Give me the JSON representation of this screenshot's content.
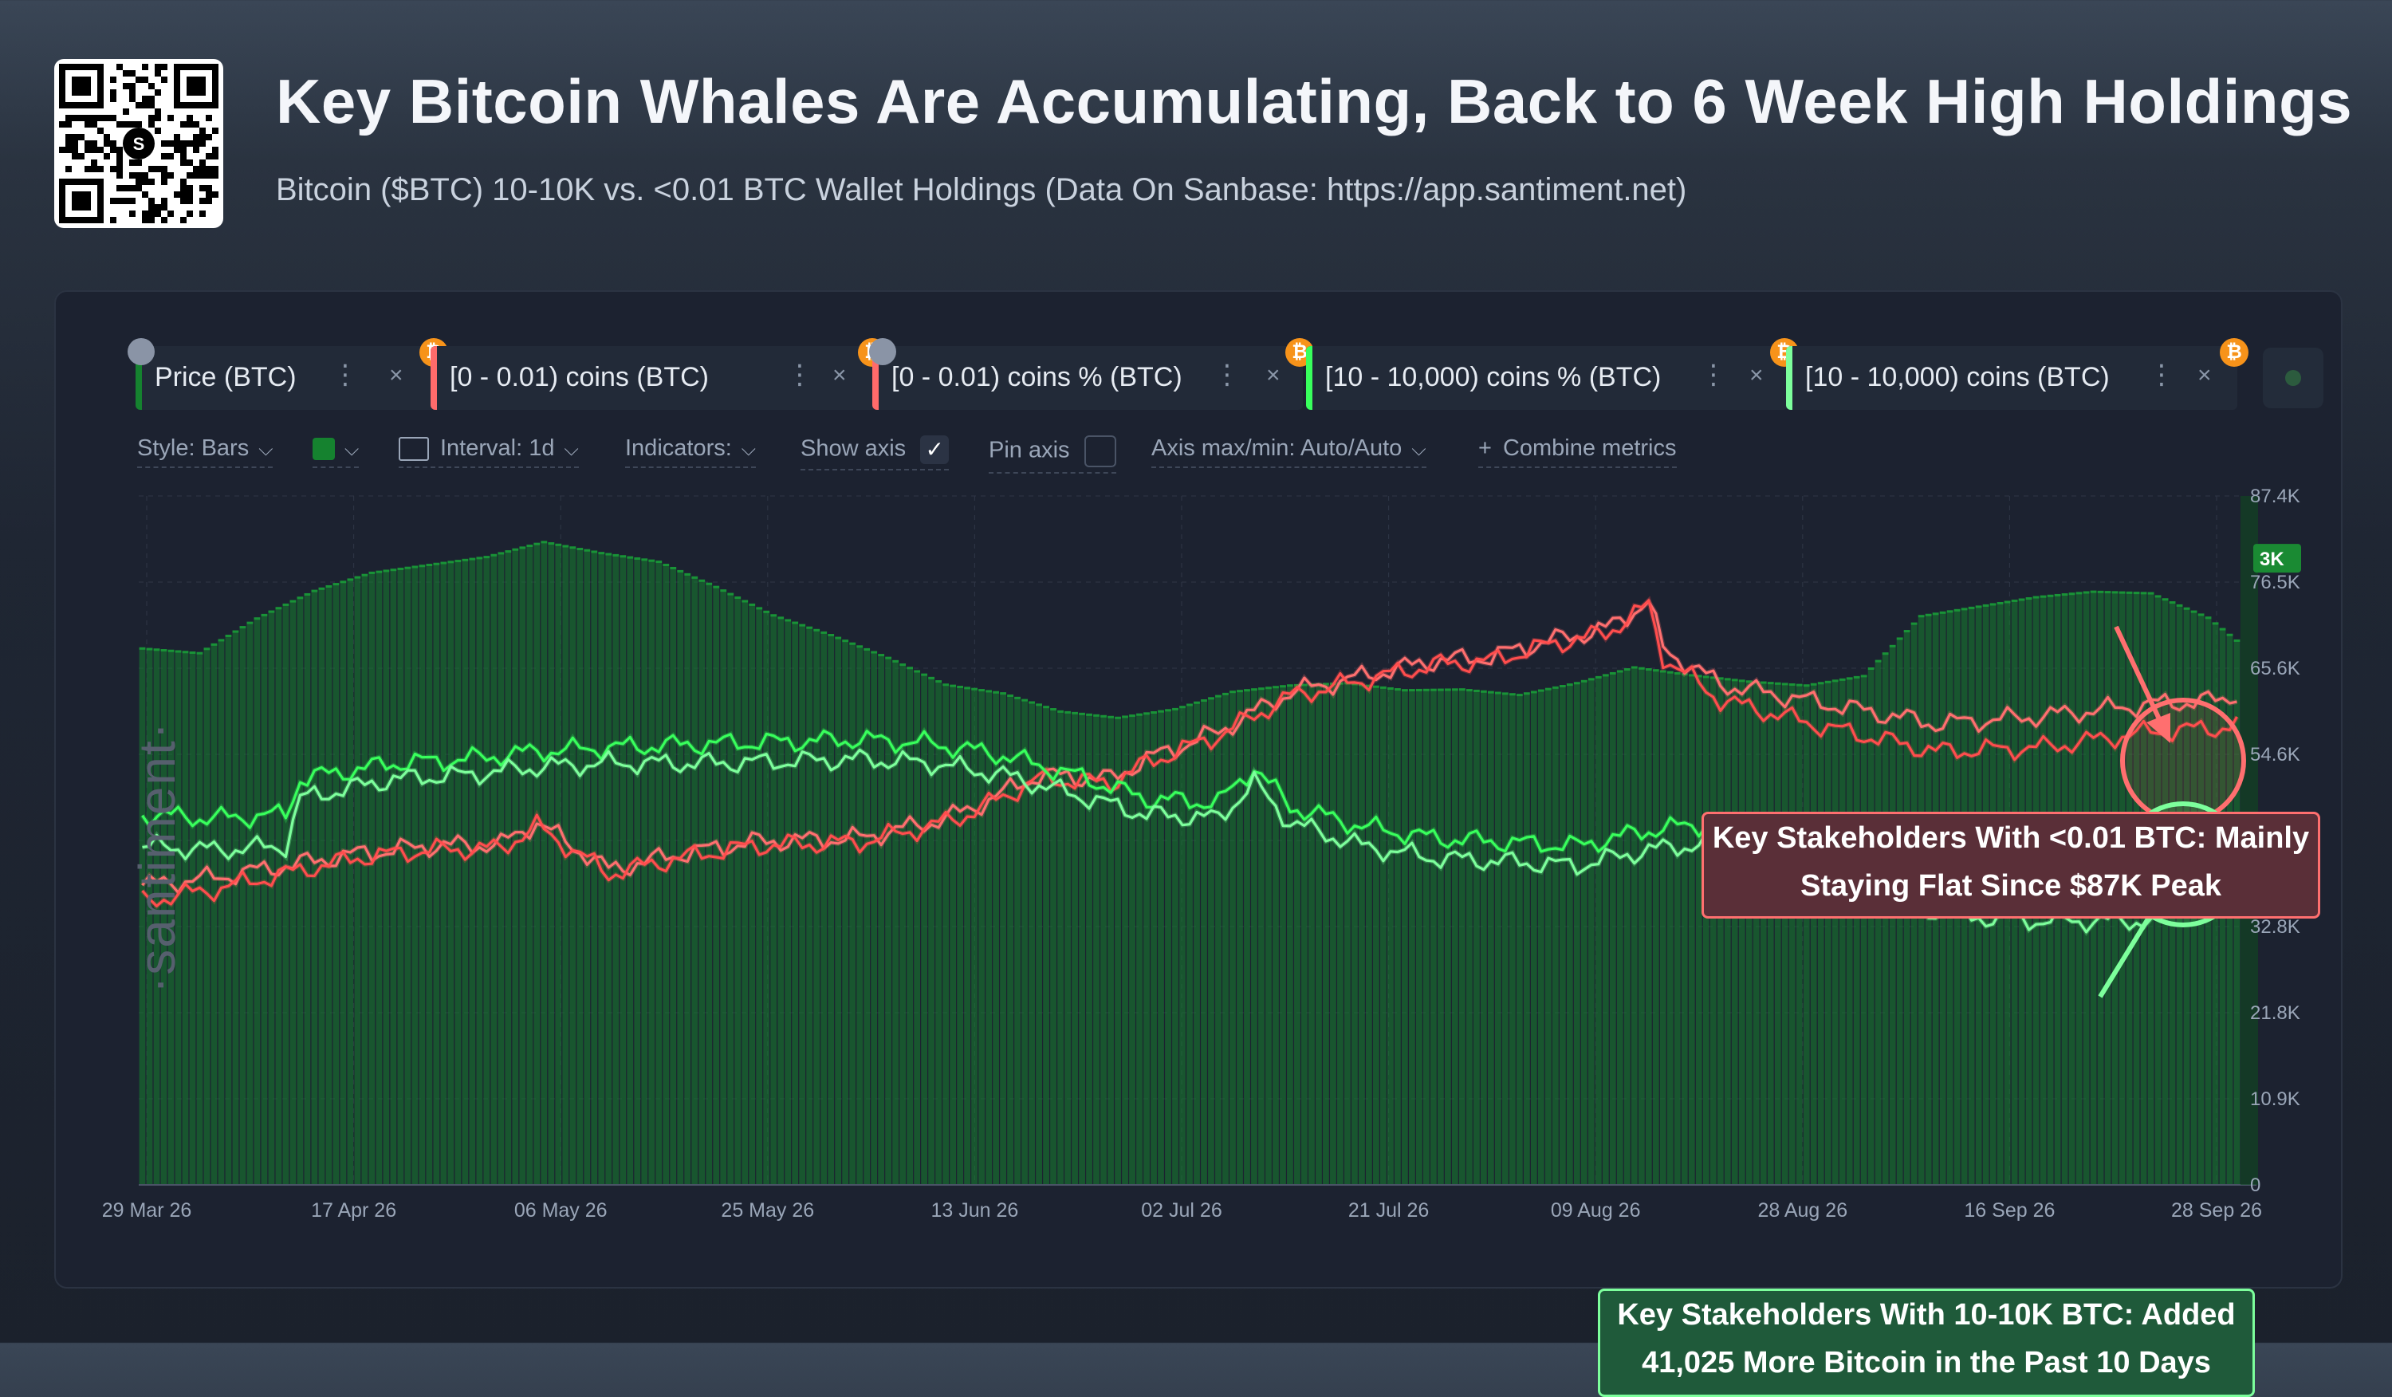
{
  "header": {
    "title": "Key Bitcoin Whales Are Accumulating, Back to 6 Week High Holdings",
    "subtitle": "Bitcoin ($BTC) 10-10K vs. <0.01 BTC Wallet Holdings (Data On Sanbase: https://app.santiment.net)",
    "qr_logo_letter": "S"
  },
  "metrics": [
    {
      "label": "Price (BTC)",
      "color": "#15822f",
      "locked": true
    },
    {
      "label": "[0 - 0.01) coins (BTC)",
      "color": "#ff6b6b",
      "locked": false
    },
    {
      "label": "[0 - 0.01) coins % (BTC)",
      "color": "#ff6b6b",
      "locked": true
    },
    {
      "label": "[10 - 10,000) coins % (BTC)",
      "color": "#38ff5c",
      "locked": false
    },
    {
      "label": "[10 - 10,000) coins (BTC)",
      "color": "#7dff9c",
      "locked": false
    }
  ],
  "controls": {
    "style": "Style: Bars",
    "interval": "Interval: 1d",
    "indicators": "Indicators:",
    "show_axis": "Show axis",
    "pin_axis": "Pin axis",
    "axis_minmax": "Axis max/min: Auto/Auto",
    "combine": "Combine metrics",
    "chevron": "⌵",
    "check": "✓",
    "plus": "+",
    "menu_dots": "⋮",
    "close": "×",
    "bitcoin_glyph": "₿"
  },
  "watermark": "·santiment·",
  "chart_data": {
    "type": "bar",
    "x_tick_labels": [
      "29 Mar 26",
      "17 Apr 26",
      "06 May 26",
      "25 May 26",
      "13 Jun 26",
      "02 Jul 26",
      "21 Jul 26",
      "09 Aug 26",
      "28 Aug 26",
      "16 Sep 26",
      "28 Sep 26"
    ],
    "y_tick_labels": [
      "87.4K",
      "76.5K",
      "65.6K",
      "54.6K",
      "43.7K",
      "32.8K",
      "21.8K",
      "10.9K",
      "0"
    ],
    "ylim": [
      0,
      87400
    ],
    "current_price_tag": "3K",
    "grid": true,
    "price_bars": {
      "name": "Price (BTC)",
      "color": "#15822f",
      "knots": [
        [
          0,
          68200
        ],
        [
          8,
          67600
        ],
        [
          16,
          72000
        ],
        [
          24,
          75500
        ],
        [
          32,
          77800
        ],
        [
          40,
          78800
        ],
        [
          48,
          79800
        ],
        [
          56,
          81700
        ],
        [
          64,
          80300
        ],
        [
          72,
          79200
        ],
        [
          80,
          76000
        ],
        [
          88,
          72400
        ],
        [
          96,
          69900
        ],
        [
          104,
          67000
        ],
        [
          112,
          63600
        ],
        [
          120,
          62500
        ],
        [
          128,
          60200
        ],
        [
          136,
          59400
        ],
        [
          144,
          60500
        ],
        [
          152,
          62700
        ],
        [
          160,
          63500
        ],
        [
          168,
          63800
        ],
        [
          176,
          62900
        ],
        [
          184,
          63000
        ],
        [
          192,
          62300
        ],
        [
          200,
          63800
        ],
        [
          208,
          65800
        ],
        [
          216,
          64800
        ],
        [
          224,
          64000
        ],
        [
          232,
          63500
        ],
        [
          240,
          64700
        ],
        [
          248,
          72300
        ],
        [
          256,
          73500
        ],
        [
          264,
          74700
        ],
        [
          272,
          75400
        ],
        [
          280,
          75200
        ],
        [
          288,
          72100
        ],
        [
          292,
          69200
        ]
      ]
    },
    "series": [
      {
        "name": "[0 - 0.01) coins (BTC)",
        "color": "#ff6f6f",
        "knots": [
          [
            0,
            38000
          ],
          [
            10,
            39000
          ],
          [
            20,
            40500
          ],
          [
            30,
            42000
          ],
          [
            40,
            43000
          ],
          [
            50,
            43200
          ],
          [
            55,
            46000
          ],
          [
            60,
            43000
          ],
          [
            65,
            40000
          ],
          [
            75,
            42000
          ],
          [
            85,
            43500
          ],
          [
            100,
            44000
          ],
          [
            110,
            46000
          ],
          [
            115,
            47500
          ],
          [
            125,
            52000
          ],
          [
            135,
            51500
          ],
          [
            140,
            54000
          ],
          [
            150,
            57500
          ],
          [
            160,
            62500
          ],
          [
            170,
            64500
          ],
          [
            180,
            66500
          ],
          [
            188,
            67000
          ],
          [
            196,
            69000
          ],
          [
            204,
            70500
          ],
          [
            210,
            74000
          ],
          [
            212,
            68000
          ],
          [
            220,
            63500
          ],
          [
            235,
            61000
          ],
          [
            250,
            58500
          ],
          [
            265,
            59500
          ],
          [
            280,
            61000
          ],
          [
            290,
            61500
          ],
          [
            292,
            62500
          ]
        ]
      },
      {
        "name": "[0 - 0.01) coins % (BTC)",
        "color": "#ff4d4d",
        "knots": [
          [
            0,
            36000
          ],
          [
            10,
            37500
          ],
          [
            20,
            39500
          ],
          [
            30,
            41500
          ],
          [
            40,
            42500
          ],
          [
            50,
            42700
          ],
          [
            55,
            45500
          ],
          [
            60,
            42500
          ],
          [
            65,
            39500
          ],
          [
            75,
            41500
          ],
          [
            85,
            43000
          ],
          [
            100,
            43500
          ],
          [
            110,
            45500
          ],
          [
            115,
            47000
          ],
          [
            125,
            51500
          ],
          [
            135,
            51000
          ],
          [
            140,
            53500
          ],
          [
            150,
            57000
          ],
          [
            160,
            62000
          ],
          [
            170,
            64000
          ],
          [
            180,
            66000
          ],
          [
            188,
            66500
          ],
          [
            196,
            68500
          ],
          [
            204,
            70000
          ],
          [
            210,
            73500
          ],
          [
            212,
            67000
          ],
          [
            220,
            61500
          ],
          [
            235,
            58000
          ],
          [
            250,
            55000
          ],
          [
            265,
            55500
          ],
          [
            280,
            57500
          ],
          [
            290,
            58000
          ],
          [
            292,
            58500
          ]
        ]
      },
      {
        "name": "[10 - 10,000) coins % (BTC)",
        "color": "#38ff5c",
        "knots": [
          [
            0,
            47000
          ],
          [
            10,
            46500
          ],
          [
            20,
            47000
          ],
          [
            22,
            51500
          ],
          [
            35,
            53500
          ],
          [
            45,
            54000
          ],
          [
            55,
            55000
          ],
          [
            65,
            55500
          ],
          [
            80,
            56000
          ],
          [
            100,
            56500
          ],
          [
            110,
            56000
          ],
          [
            120,
            54500
          ],
          [
            130,
            52000
          ],
          [
            140,
            49000
          ],
          [
            150,
            48500
          ],
          [
            155,
            53000
          ],
          [
            160,
            48000
          ],
          [
            170,
            45500
          ],
          [
            180,
            44000
          ],
          [
            190,
            43500
          ],
          [
            200,
            43000
          ],
          [
            210,
            45000
          ],
          [
            220,
            46000
          ],
          [
            225,
            43000
          ],
          [
            235,
            40000
          ],
          [
            245,
            38500
          ],
          [
            255,
            37000
          ],
          [
            265,
            37000
          ],
          [
            280,
            37000
          ],
          [
            285,
            40000
          ],
          [
            292,
            46000
          ]
        ]
      },
      {
        "name": "[10 - 10,000) coins (BTC)",
        "color": "#7dff9c",
        "knots": [
          [
            0,
            43000
          ],
          [
            10,
            42500
          ],
          [
            20,
            43000
          ],
          [
            22,
            49000
          ],
          [
            35,
            51500
          ],
          [
            45,
            52000
          ],
          [
            55,
            53000
          ],
          [
            65,
            53500
          ],
          [
            80,
            53500
          ],
          [
            100,
            54000
          ],
          [
            110,
            53500
          ],
          [
            120,
            52000
          ],
          [
            130,
            49500
          ],
          [
            140,
            47000
          ],
          [
            150,
            46500
          ],
          [
            155,
            51000
          ],
          [
            160,
            46000
          ],
          [
            170,
            43000
          ],
          [
            180,
            41500
          ],
          [
            190,
            41000
          ],
          [
            200,
            40500
          ],
          [
            210,
            42500
          ],
          [
            220,
            43500
          ],
          [
            225,
            40500
          ],
          [
            235,
            37000
          ],
          [
            245,
            35500
          ],
          [
            255,
            34000
          ],
          [
            265,
            33500
          ],
          [
            280,
            33500
          ],
          [
            285,
            37000
          ],
          [
            292,
            43000
          ]
        ]
      }
    ]
  },
  "annotations": {
    "red": {
      "line1": "Key Stakeholders With <0.01 BTC: Mainly",
      "line2": "Staying Flat Since $87K Peak",
      "color": "#ff6f6f"
    },
    "green": {
      "line1": "Key Stakeholders With 10-10K BTC: Added",
      "line2": "41,025 More Bitcoin in the Past 10 Days",
      "color": "#7dff9c"
    }
  }
}
